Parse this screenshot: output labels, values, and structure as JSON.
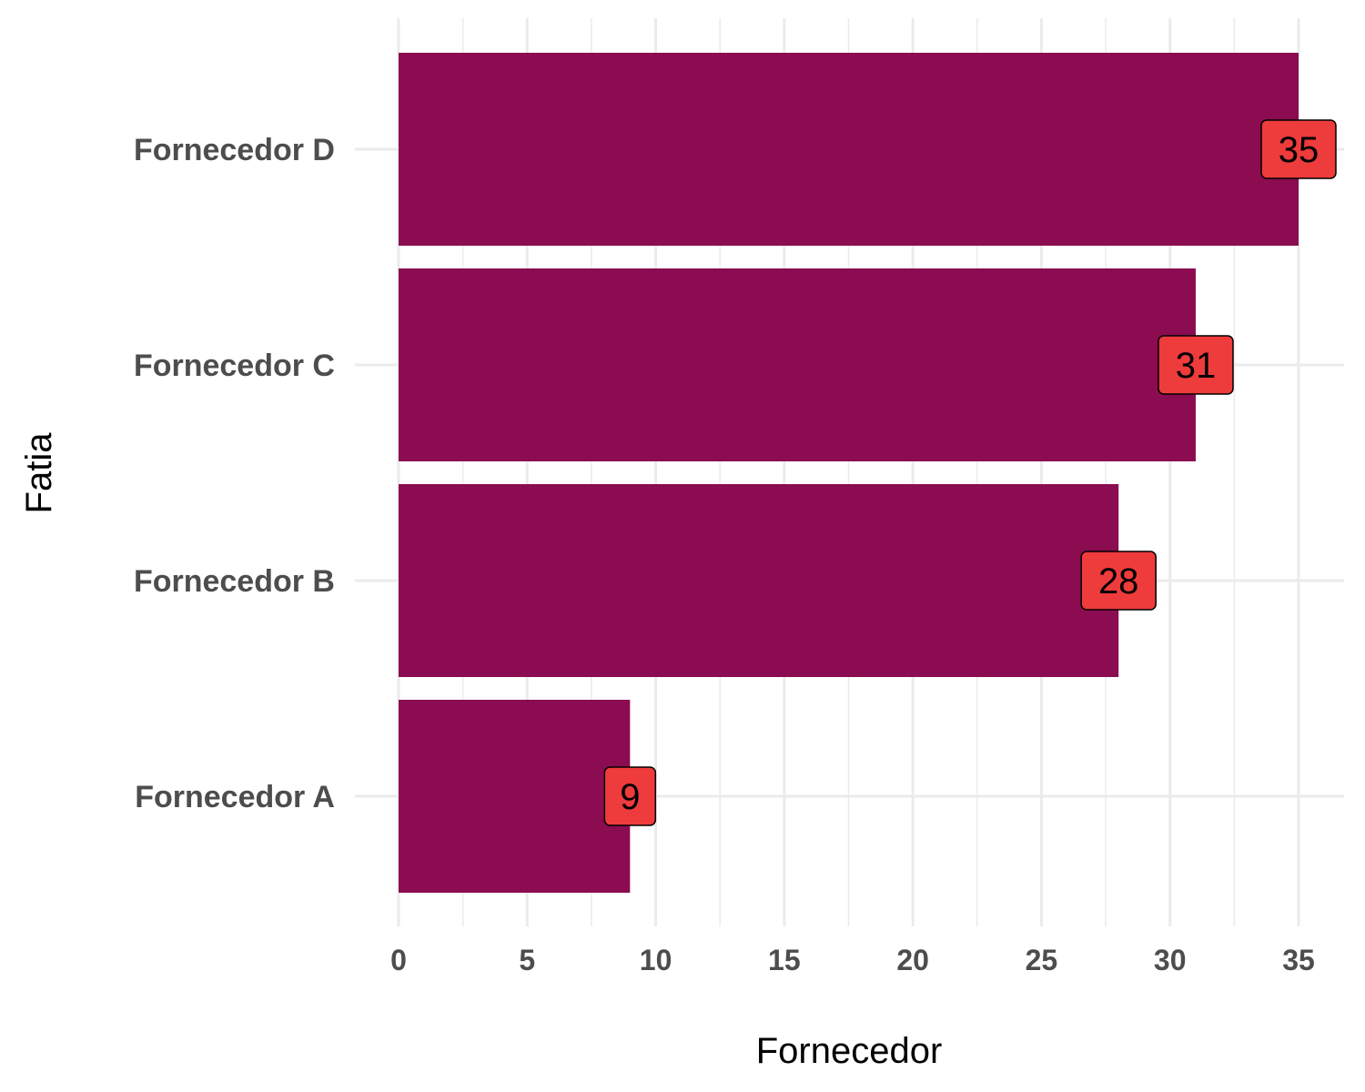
{
  "chart_data": {
    "type": "bar",
    "orientation": "horizontal",
    "categories": [
      "Fornecedor A",
      "Fornecedor B",
      "Fornecedor C",
      "Fornecedor D"
    ],
    "values": [
      9,
      28,
      31,
      35
    ],
    "data_labels": [
      "9",
      "28",
      "31",
      "35"
    ],
    "xlabel": "Fornecedor",
    "ylabel": "Fatia",
    "xlim": [
      0,
      36.8
    ],
    "x_ticks": [
      0,
      5,
      10,
      15,
      20,
      25,
      30,
      35
    ],
    "x_tick_labels": [
      "0",
      "5",
      "10",
      "15",
      "20",
      "25",
      "30",
      "35"
    ],
    "grid": true,
    "legend": "none",
    "bar_color": "#8B0C50",
    "label_fill_color": "#EE3B3B",
    "grid_color": "#EBEBEB"
  }
}
